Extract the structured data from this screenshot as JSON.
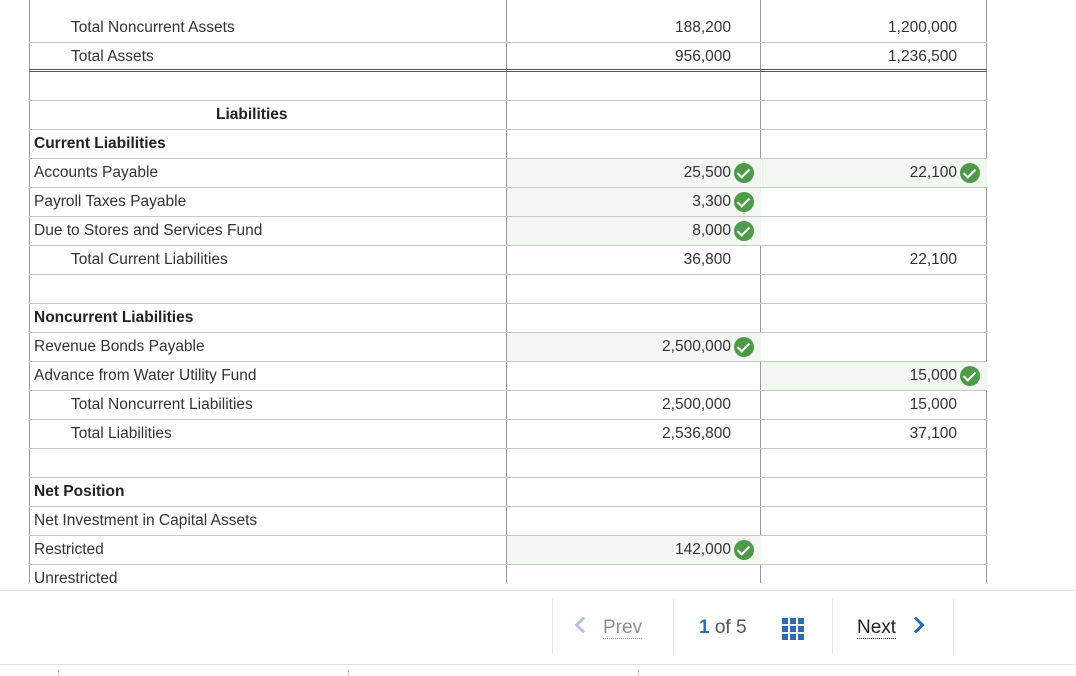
{
  "rows": [
    {
      "label": "Total Noncurrent Assets",
      "style": "indent",
      "v1": "188,200",
      "v2": "1,200,000"
    },
    {
      "label": "Total Assets",
      "style": "indent",
      "v1": "956,000",
      "v2": "1,236,500",
      "double": true
    },
    {
      "label": "",
      "style": "",
      "v1": "",
      "v2": ""
    },
    {
      "label": "Liabilities",
      "style": "bold center",
      "v1": "",
      "v2": ""
    },
    {
      "label": "Current Liabilities",
      "style": "bold",
      "v1": "",
      "v2": ""
    },
    {
      "label": "Accounts Payable",
      "style": "",
      "v1": "25,500",
      "v1_check": true,
      "v1_hl": true,
      "v2": "22,100",
      "v2_check": true,
      "v2_hl": true
    },
    {
      "label": "Payroll Taxes Payable",
      "style": "",
      "v1": "3,300",
      "v1_check": true,
      "v1_hl": true,
      "v2": ""
    },
    {
      "label": "Due to Stores and Services Fund",
      "style": "",
      "v1": "8,000",
      "v1_check": true,
      "v1_hl": true,
      "v2": ""
    },
    {
      "label": "Total Current Liabilities",
      "style": "indent",
      "v1": "36,800",
      "v2": "22,100"
    },
    {
      "label": "",
      "style": "",
      "v1": "",
      "v2": ""
    },
    {
      "label": "Noncurrent Liabilities",
      "style": "bold",
      "v1": "",
      "v2": ""
    },
    {
      "label": "Revenue Bonds Payable",
      "style": "",
      "v1": "2,500,000",
      "v1_check": true,
      "v1_hl": true,
      "v2": ""
    },
    {
      "label": "Advance from Water Utility Fund",
      "style": "",
      "v1": "",
      "v2": "15,000",
      "v2_check": true,
      "v2_hl": true
    },
    {
      "label": "Total Noncurrent Liabilities",
      "style": "indent",
      "v1": "2,500,000",
      "v2": "15,000"
    },
    {
      "label": "Total Liabilities",
      "style": "indent",
      "v1": "2,536,800",
      "v2": "37,100"
    },
    {
      "label": "",
      "style": "",
      "v1": "",
      "v2": ""
    },
    {
      "label": "Net Position",
      "style": "bold",
      "v1": "",
      "v2": ""
    },
    {
      "label": "Net Investment in Capital Assets",
      "style": "",
      "v1": "",
      "v2": ""
    },
    {
      "label": "Restricted",
      "style": "",
      "v1": "142,000",
      "v1_check": true,
      "v1_hl": true,
      "v2": ""
    },
    {
      "label": "Unrestricted",
      "style": "",
      "v1": "",
      "v2": ""
    }
  ],
  "pager": {
    "prev_label": "Prev",
    "current_page": "1",
    "of_label": "of",
    "total_pages": "5",
    "next_label": "Next"
  },
  "icons": {
    "check": "check-circle-icon",
    "prev": "chevron-left-icon",
    "next": "chevron-right-icon",
    "grid": "grid-icon"
  },
  "colors": {
    "check_green": "#4f9a4a",
    "accent_blue": "#2a6db5",
    "highlight_cell": "#f3f7f2"
  }
}
